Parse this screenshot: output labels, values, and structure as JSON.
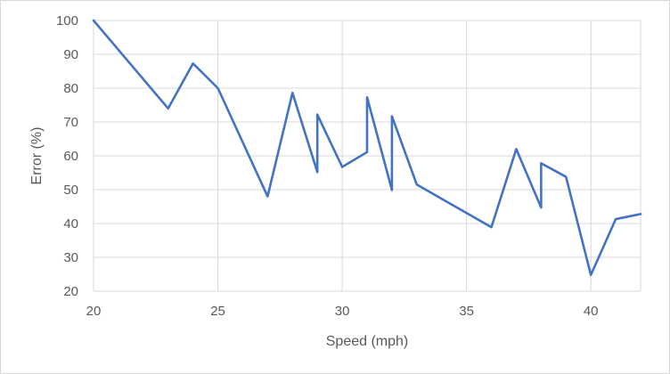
{
  "chart_data": {
    "type": "line",
    "title": "",
    "xlabel": "Speed (mph)",
    "ylabel": "Error (%)",
    "xlim": [
      20,
      42
    ],
    "ylim": [
      20,
      100
    ],
    "xticks": [
      20,
      25,
      30,
      35,
      40
    ],
    "yticks": [
      20,
      30,
      40,
      50,
      60,
      70,
      80,
      90,
      100
    ],
    "grid": true,
    "legend": "none",
    "series": [
      {
        "color": "#4472c4",
        "x": [
          20,
          23,
          24,
          25,
          27,
          28,
          29,
          29,
          30,
          31,
          31,
          32,
          32,
          33,
          36,
          37,
          38,
          38,
          39,
          40,
          41,
          42
        ],
        "y": [
          100,
          74,
          87.3,
          80,
          48,
          78.6,
          55.2,
          72.2,
          56.7,
          61.1,
          77.3,
          49.9,
          71.7,
          51.5,
          38.9,
          62,
          44.7,
          57.8,
          53.8,
          24.8,
          41.3,
          42.8
        ]
      }
    ]
  }
}
